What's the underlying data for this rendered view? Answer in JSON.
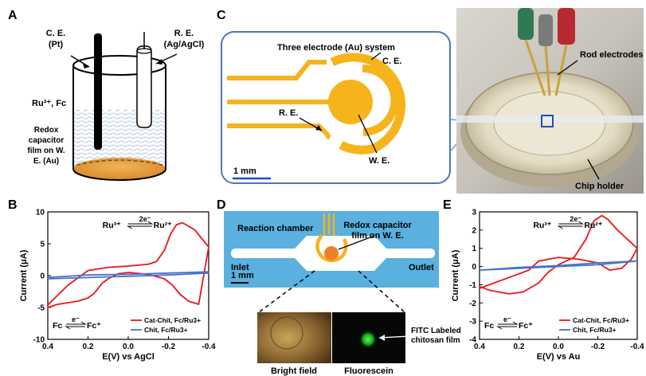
{
  "panels": {
    "a": "A",
    "b": "B",
    "c": "C",
    "d": "D",
    "e": "E"
  },
  "panel_a": {
    "ce": [
      "C. E.",
      "(Pt)"
    ],
    "re": [
      "R. E.",
      "(Ag/AgCl)"
    ],
    "species": "Ru³⁺, Fc",
    "film": [
      "Redox",
      "capacitor",
      "film on W.",
      "E. (Au)"
    ]
  },
  "panel_c": {
    "title": "Three electrode (Au) system",
    "ce": "C. E.",
    "re": "R. E.",
    "we": "W. E.",
    "scale": "1 mm",
    "rod": "Rod electrodes",
    "holder": "Chip holder"
  },
  "panel_d": {
    "chamber": "Reaction chamber",
    "film": [
      "Redox capacitor",
      "film on W. E."
    ],
    "inlet": "Inlet",
    "outlet": "Outlet",
    "scale": "1 mm",
    "fitc": [
      "FITC Labeled",
      "chitosan film"
    ],
    "bright": "Bright field",
    "fluor": "Fluorescein"
  },
  "colors": {
    "red": "#e8161b",
    "blue": "#4a72c9",
    "gold": "#f5b41b",
    "channel": "#5ab0de",
    "orange": "#e9822c"
  },
  "chart_data": [
    {
      "panel": "B",
      "type": "line",
      "xlabel": "E(V) vs AgCl",
      "ylabel": "Current (μA)",
      "xlim": [
        0.4,
        -0.4
      ],
      "ylim": [
        -10,
        10
      ],
      "xticks": [
        "0.4",
        "0.2",
        "0.0",
        "-0.2",
        "-0.4"
      ],
      "yticks": [
        "10",
        "5",
        "0",
        "-5",
        "-10"
      ],
      "annot_top": {
        "left": "Ru³⁺",
        "e": "2e⁻",
        "right": "Ru²⁺"
      },
      "annot_bottom": {
        "left": "Fc",
        "e": "e⁻",
        "right": "Fc⁺"
      },
      "series": [
        {
          "name": "Cat-Chit, Fc/Ru3+",
          "color": "#e8161b",
          "x": [
            -0.4,
            -0.33,
            -0.27,
            -0.24,
            -0.21,
            -0.18,
            -0.14,
            -0.1,
            0,
            0.1,
            0.2,
            0.3,
            0.4,
            0.4,
            0.35,
            0.25,
            0.2,
            0.17,
            0.13,
            0.1,
            0.05,
            0,
            -0.1,
            -0.18,
            -0.22,
            -0.26,
            -0.3,
            -0.35,
            -0.4
          ],
          "y": [
            4.5,
            7.2,
            8.3,
            8.0,
            6.5,
            4.0,
            2.2,
            1.8,
            1.5,
            1.3,
            0.8,
            -1.5,
            -4.6,
            -5.0,
            -4.5,
            -4.0,
            -3.5,
            -2.8,
            -1.2,
            -0.5,
            0.3,
            0.5,
            0.2,
            -0.5,
            -1.5,
            -3.0,
            -4.0,
            -4.5,
            4.5
          ]
        },
        {
          "name": "Chit, Fc/Ru3+",
          "color": "#4a72c9",
          "x": [
            0.4,
            0.2,
            0.0,
            -0.2,
            -0.4,
            -0.4,
            -0.2,
            0.0,
            0.2,
            0.4
          ],
          "y": [
            -0.5,
            -0.3,
            -0.1,
            0.1,
            0.4,
            0.6,
            0.4,
            0.2,
            0.1,
            -0.3
          ]
        }
      ]
    },
    {
      "panel": "E",
      "type": "line",
      "xlabel": "E(V) vs Au",
      "ylabel": "Current (μA)",
      "xlim": [
        0.4,
        -0.4
      ],
      "ylim": [
        -4,
        3
      ],
      "xticks": [
        "0.4",
        "0.2",
        "0.0",
        "-0.2",
        "-0.4"
      ],
      "yticks": [
        "3",
        "2",
        "1",
        "0",
        "-1",
        "-2",
        "-3",
        "-4"
      ],
      "annot_top": {
        "left": "Ru³⁺",
        "e": "2e⁻",
        "right": "Ru²⁺"
      },
      "annot_bottom": {
        "left": "Fc",
        "e": "e⁻",
        "right": "Fc⁺"
      },
      "series": [
        {
          "name": "Cat-Chit, Fc/Ru3+",
          "color": "#e8161b",
          "x": [
            -0.4,
            -0.35,
            -0.3,
            -0.25,
            -0.22,
            -0.18,
            -0.14,
            -0.08,
            0,
            0.05,
            0.1,
            0.18,
            0.25,
            0.3,
            0.35,
            0.4,
            0.4,
            0.35,
            0.25,
            0.15,
            0.1,
            0.05,
            0,
            -0.1,
            -0.2,
            -0.26,
            -0.32,
            -0.37,
            -0.4
          ],
          "y": [
            1.0,
            1.5,
            2.0,
            2.6,
            2.8,
            2.5,
            1.5,
            0.5,
            0.1,
            -0.3,
            -0.9,
            -1.4,
            -1.5,
            -1.4,
            -1.3,
            -1.1,
            -1.2,
            -1.0,
            -0.6,
            -0.2,
            0.3,
            0.4,
            0.5,
            0.4,
            0.2,
            -0.2,
            -0.1,
            0.4,
            1.0
          ]
        },
        {
          "name": "Chit, Fc/Ru3+",
          "color": "#4a72c9",
          "x": [
            0.4,
            0.2,
            0.0,
            -0.2,
            -0.4,
            -0.4,
            -0.2,
            0.0,
            0.2,
            0.4
          ],
          "y": [
            -0.2,
            -0.1,
            0.0,
            0.1,
            0.3,
            0.3,
            0.2,
            0.05,
            -0.05,
            -0.2
          ]
        }
      ]
    }
  ]
}
